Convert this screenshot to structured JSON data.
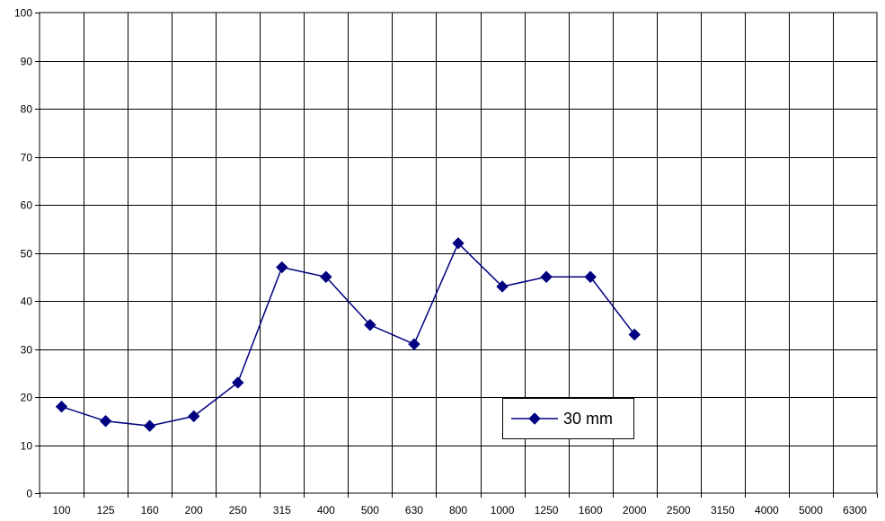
{
  "chart_data": {
    "type": "line",
    "title": "",
    "xlabel": "",
    "ylabel": "",
    "categories": [
      "100",
      "125",
      "160",
      "200",
      "250",
      "315",
      "400",
      "500",
      "630",
      "800",
      "1000",
      "1250",
      "1600",
      "2000",
      "2500",
      "3150",
      "4000",
      "5000",
      "6300"
    ],
    "ylim": [
      0,
      100
    ],
    "yticks": [
      0,
      10,
      20,
      30,
      40,
      50,
      60,
      70,
      80,
      90,
      100
    ],
    "grid": true,
    "legend_position": "lower-right",
    "series": [
      {
        "name": "30 mm",
        "color": "#000080",
        "marker": "diamond",
        "values": [
          18,
          15,
          14,
          16,
          23,
          47,
          45,
          35,
          31,
          52,
          43,
          45,
          45,
          33,
          null,
          null,
          null,
          null,
          null
        ]
      }
    ]
  }
}
